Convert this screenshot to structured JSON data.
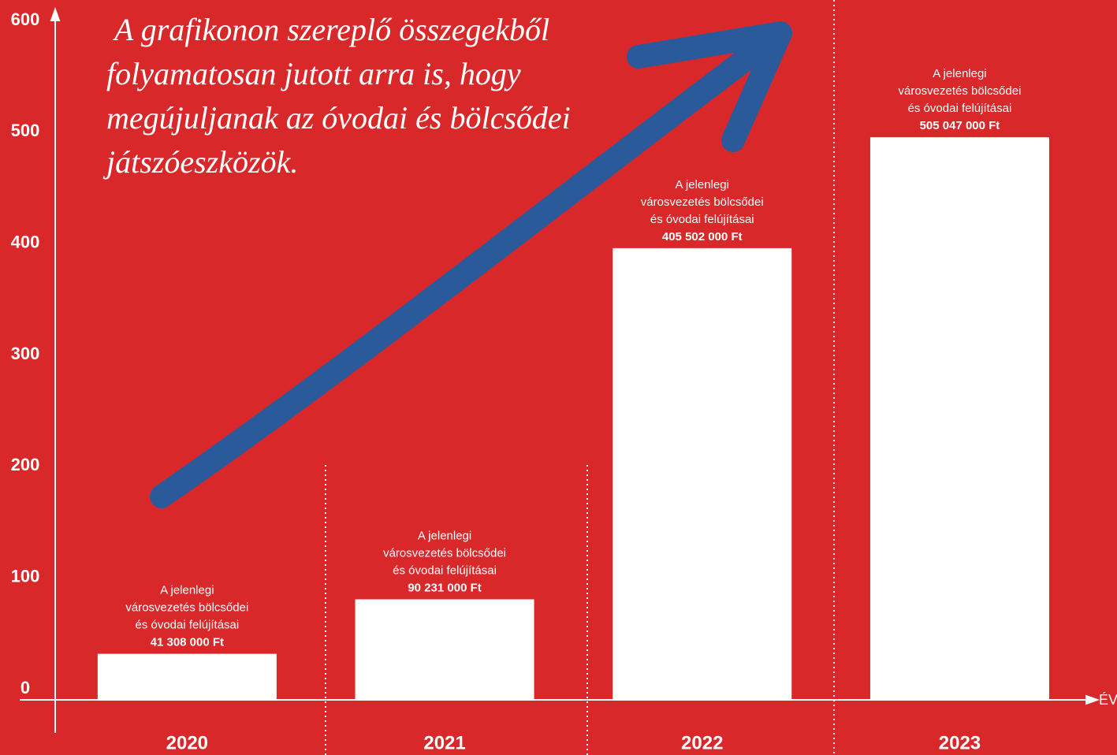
{
  "chart_data": {
    "type": "bar",
    "categories": [
      "2020",
      "2021",
      "2022",
      "2023"
    ],
    "values": [
      41.308,
      90.231,
      405.502,
      505.047
    ],
    "value_labels": [
      "41 308 000 Ft",
      "90 231 000 Ft",
      "405 502 000 Ft",
      "505 047 000 Ft"
    ],
    "bar_notes": [
      [
        "A jelenlegi",
        "városvezetés bölcsődei",
        "és óvodai felújításai"
      ],
      [
        "A jelenlegi",
        "városvezetés bölcsődei",
        "és óvodai felújításai"
      ],
      [
        "A jelenlegi",
        "városvezetés bölcsődei",
        "és óvodai felújításai"
      ],
      [
        "A jelenlegi",
        "városvezetés bölcsődei",
        "és óvodai felújításai"
      ]
    ],
    "color": "#ffffff",
    "x_label": "ÉV",
    "annotation": [
      "A grafikonon szereplő összegekből",
      "folyamatosan jutott arra is, hogy",
      "megújuljanak az óvodai és bölcsődei",
      "játszóeszközök."
    ],
    "ylim": [
      0,
      600
    ],
    "yticks": [
      0,
      100,
      200,
      300,
      400,
      500,
      600
    ],
    "grid": false
  }
}
